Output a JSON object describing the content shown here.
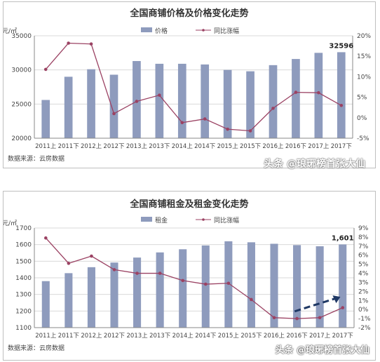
{
  "chart_data": [
    {
      "type": "bar",
      "title": "全国商铺价格及价格变化走势",
      "y_unit": "元/㎡",
      "categories": [
        "2011上",
        "2011下",
        "2012上",
        "2012下",
        "2013上",
        "2013下",
        "2014上",
        "2014下",
        "2015上",
        "2015下",
        "2016上",
        "2016下",
        "2017上",
        "2017下"
      ],
      "series": [
        {
          "name": "价格",
          "type": "bar",
          "axis": "left",
          "color": "#8e9bbd",
          "values": [
            25600,
            29000,
            30100,
            29300,
            31300,
            30900,
            30900,
            30800,
            30000,
            29800,
            30700,
            31600,
            32500,
            32596
          ]
        },
        {
          "name": "同比涨幅",
          "type": "line",
          "axis": "right",
          "color": "#9b4263",
          "values": [
            11.8,
            18.2,
            18.0,
            1.0,
            4.0,
            5.5,
            -1.2,
            -0.3,
            -2.8,
            -3.2,
            2.3,
            6.2,
            6.1,
            3.0
          ]
        }
      ],
      "ylim": [
        20000,
        35000
      ],
      "yticks": [
        "20000",
        "25000",
        "30000",
        "35000"
      ],
      "y2lim": [
        -5,
        20
      ],
      "y2ticks": [
        "-5%",
        "0%",
        "5%",
        "10%",
        "15%",
        "20%"
      ],
      "annotation": "32596",
      "legend_position": "top",
      "source": "数据来源：云房数据"
    },
    {
      "type": "bar",
      "title": "全国商铺租金及租金变化走势",
      "y_unit": "元/㎡",
      "categories": [
        "2011上",
        "2011下",
        "2012上",
        "2012下",
        "2013上",
        "2013下",
        "2014上",
        "2014下",
        "2015上",
        "2015下",
        "2016上",
        "2016下",
        "2017上",
        "2017下"
      ],
      "series": [
        {
          "name": "租金",
          "type": "bar",
          "axis": "left",
          "color": "#8e9bbd",
          "values": [
            1380,
            1428,
            1464,
            1492,
            1522,
            1553,
            1572,
            1595,
            1620,
            1614,
            1605,
            1597,
            1590,
            1601
          ]
        },
        {
          "name": "同比涨幅",
          "type": "line",
          "axis": "right",
          "color": "#9b4263",
          "values": [
            7.9,
            5.1,
            5.9,
            4.4,
            4.0,
            4.0,
            3.2,
            2.8,
            2.9,
            1.1,
            -0.9,
            -1.0,
            -0.9,
            0.2
          ]
        }
      ],
      "ylim": [
        1100,
        1700
      ],
      "yticks": [
        "1100",
        "1200",
        "1300",
        "1400",
        "1500",
        "1600",
        "1700"
      ],
      "y2lim": [
        -2,
        9
      ],
      "y2ticks": [
        "-2%",
        "-1%",
        "0%",
        "1%",
        "2%",
        "3%",
        "4%",
        "5%",
        "6%",
        "7%",
        "8%",
        "9%"
      ],
      "annotation": "1,601",
      "legend_position": "top",
      "source": "数据来源：云房数据"
    }
  ],
  "watermarks": [
    "头条 @琅琊榜首张大仙",
    "头条 @琅琊榜首张大仙"
  ]
}
